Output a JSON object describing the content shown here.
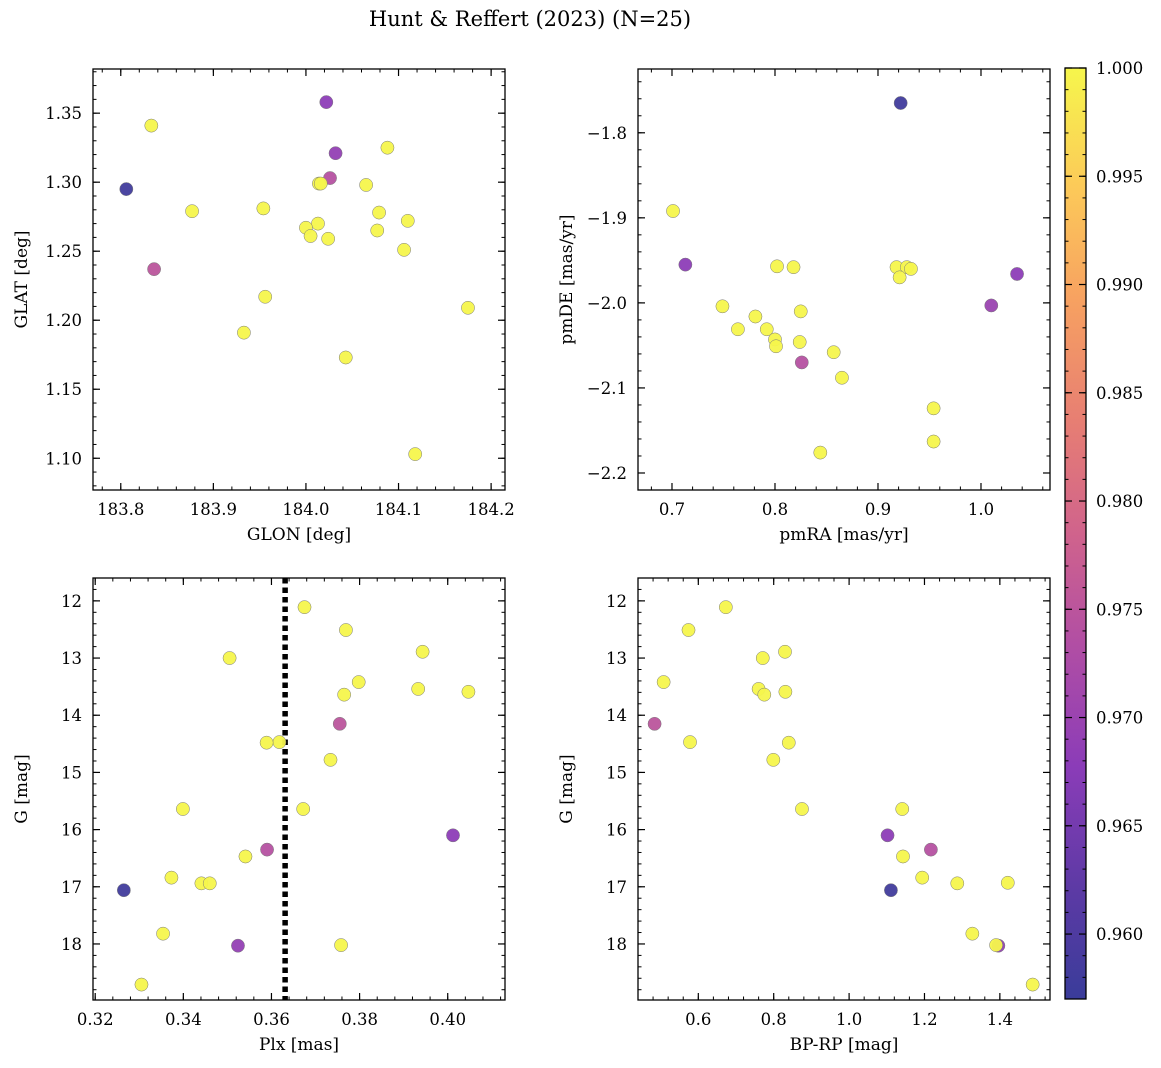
{
  "figure": {
    "title": "Hunt & Reffert (2023) (N=25)"
  },
  "colorbar": {
    "colormap": "plasma",
    "range": [
      0.957,
      1.0
    ],
    "ticks": [
      0.96,
      0.965,
      0.97,
      0.975,
      0.98,
      0.985,
      0.99,
      0.995,
      1.0
    ],
    "tick_labels": [
      "0.960",
      "0.965",
      "0.970",
      "0.975",
      "0.980",
      "0.985",
      "0.990",
      "0.995",
      "1.000"
    ]
  },
  "chart_data": [
    {
      "type": "scatter",
      "panel": "top-left",
      "xlabel": "GLON [deg]",
      "ylabel": "GLAT [deg]",
      "xlim": [
        183.77,
        184.215
      ],
      "ylim": [
        1.077,
        1.382
      ],
      "y_inverted": false,
      "xticks": [
        183.8,
        183.9,
        184.0,
        184.1,
        184.2
      ],
      "xtick_labels": [
        "183.8",
        "183.9",
        "184.0",
        "184.1",
        "184.2"
      ],
      "yticks": [
        1.1,
        1.15,
        1.2,
        1.25,
        1.3,
        1.35
      ],
      "ytick_labels": [
        "1.10",
        "1.15",
        "1.20",
        "1.25",
        "1.30",
        "1.35"
      ],
      "points": [
        {
          "x": 184.022,
          "y": 1.358,
          "c": 0.968
        },
        {
          "x": 183.833,
          "y": 1.341,
          "c": 1.0
        },
        {
          "x": 184.088,
          "y": 1.325,
          "c": 1.0
        },
        {
          "x": 184.032,
          "y": 1.321,
          "c": 0.969
        },
        {
          "x": 184.026,
          "y": 1.303,
          "c": 0.974
        },
        {
          "x": 184.014,
          "y": 1.299,
          "c": 1.0
        },
        {
          "x": 184.016,
          "y": 1.299,
          "c": 1.0
        },
        {
          "x": 184.065,
          "y": 1.298,
          "c": 1.0
        },
        {
          "x": 183.806,
          "y": 1.295,
          "c": 0.958
        },
        {
          "x": 183.954,
          "y": 1.281,
          "c": 1.0
        },
        {
          "x": 183.877,
          "y": 1.279,
          "c": 1.0
        },
        {
          "x": 184.079,
          "y": 1.278,
          "c": 1.0
        },
        {
          "x": 184.11,
          "y": 1.272,
          "c": 1.0
        },
        {
          "x": 184.013,
          "y": 1.27,
          "c": 1.0
        },
        {
          "x": 184.0,
          "y": 1.267,
          "c": 1.0
        },
        {
          "x": 184.077,
          "y": 1.265,
          "c": 1.0
        },
        {
          "x": 184.005,
          "y": 1.261,
          "c": 1.0
        },
        {
          "x": 184.024,
          "y": 1.259,
          "c": 1.0
        },
        {
          "x": 184.106,
          "y": 1.251,
          "c": 1.0
        },
        {
          "x": 183.836,
          "y": 1.237,
          "c": 0.975
        },
        {
          "x": 183.956,
          "y": 1.217,
          "c": 1.0
        },
        {
          "x": 184.175,
          "y": 1.209,
          "c": 1.0
        },
        {
          "x": 183.933,
          "y": 1.191,
          "c": 1.0
        },
        {
          "x": 184.043,
          "y": 1.173,
          "c": 1.0
        },
        {
          "x": 184.118,
          "y": 1.103,
          "c": 1.0
        }
      ]
    },
    {
      "type": "scatter",
      "panel": "top-right",
      "xlabel": "pmRA [mas/yr]",
      "ylabel": "pmDE [mas/yr]",
      "xlim": [
        0.667,
        1.067
      ],
      "ylim": [
        -2.22,
        -1.725
      ],
      "y_inverted": false,
      "xticks": [
        0.7,
        0.8,
        0.9,
        1.0
      ],
      "xtick_labels": [
        "0.7",
        "0.8",
        "0.9",
        "1.0"
      ],
      "yticks": [
        -2.2,
        -2.1,
        -2.0,
        -1.9,
        -1.8
      ],
      "ytick_labels": [
        "−2.2",
        "−2.1",
        "−2.0",
        "−1.9",
        "−1.8"
      ],
      "points": [
        {
          "x": 0.922,
          "y": -1.765,
          "c": 0.958
        },
        {
          "x": 0.701,
          "y": -1.892,
          "c": 1.0
        },
        {
          "x": 0.713,
          "y": -1.955,
          "c": 0.968
        },
        {
          "x": 0.802,
          "y": -1.957,
          "c": 1.0
        },
        {
          "x": 0.818,
          "y": -1.958,
          "c": 1.0
        },
        {
          "x": 0.918,
          "y": -1.958,
          "c": 1.0
        },
        {
          "x": 0.928,
          "y": -1.958,
          "c": 1.0
        },
        {
          "x": 0.932,
          "y": -1.96,
          "c": 1.0
        },
        {
          "x": 1.035,
          "y": -1.966,
          "c": 0.968
        },
        {
          "x": 0.921,
          "y": -1.97,
          "c": 1.0
        },
        {
          "x": 0.749,
          "y": -2.004,
          "c": 1.0
        },
        {
          "x": 1.01,
          "y": -2.003,
          "c": 0.97
        },
        {
          "x": 0.825,
          "y": -2.01,
          "c": 1.0
        },
        {
          "x": 0.781,
          "y": -2.016,
          "c": 1.0
        },
        {
          "x": 0.764,
          "y": -2.031,
          "c": 1.0
        },
        {
          "x": 0.792,
          "y": -2.031,
          "c": 1.0
        },
        {
          "x": 0.8,
          "y": -2.043,
          "c": 1.0
        },
        {
          "x": 0.824,
          "y": -2.046,
          "c": 1.0
        },
        {
          "x": 0.801,
          "y": -2.051,
          "c": 1.0
        },
        {
          "x": 0.857,
          "y": -2.058,
          "c": 1.0
        },
        {
          "x": 0.826,
          "y": -2.07,
          "c": 0.974
        },
        {
          "x": 0.865,
          "y": -2.088,
          "c": 1.0
        },
        {
          "x": 0.954,
          "y": -2.124,
          "c": 1.0
        },
        {
          "x": 0.954,
          "y": -2.163,
          "c": 1.0
        },
        {
          "x": 0.844,
          "y": -2.176,
          "c": 1.0
        }
      ]
    },
    {
      "type": "scatter",
      "panel": "bottom-left",
      "xlabel": "Plx [mas]",
      "ylabel": "G [mag]",
      "xlim": [
        0.3195,
        0.413
      ],
      "ylim": [
        11.6,
        18.98
      ],
      "y_inverted": true,
      "xticks": [
        0.32,
        0.34,
        0.36,
        0.38,
        0.4
      ],
      "xtick_labels": [
        "0.32",
        "0.34",
        "0.36",
        "0.38",
        "0.40"
      ],
      "yticks": [
        12,
        13,
        14,
        15,
        16,
        17,
        18
      ],
      "ytick_labels": [
        "12",
        "13",
        "14",
        "15",
        "16",
        "17",
        "18"
      ],
      "vline": {
        "x": 0.3631,
        "style": "dotted",
        "color": "#000000"
      },
      "points": [
        {
          "x": 0.3675,
          "y": 12.11,
          "c": 1.0
        },
        {
          "x": 0.3769,
          "y": 12.51,
          "c": 1.0
        },
        {
          "x": 0.3943,
          "y": 12.89,
          "c": 1.0
        },
        {
          "x": 0.3505,
          "y": 13.0,
          "c": 1.0
        },
        {
          "x": 0.3798,
          "y": 13.42,
          "c": 1.0
        },
        {
          "x": 0.3933,
          "y": 13.54,
          "c": 1.0
        },
        {
          "x": 0.4047,
          "y": 13.59,
          "c": 1.0
        },
        {
          "x": 0.3765,
          "y": 13.64,
          "c": 1.0
        },
        {
          "x": 0.3755,
          "y": 14.15,
          "c": 0.975
        },
        {
          "x": 0.3618,
          "y": 14.47,
          "c": 1.0
        },
        {
          "x": 0.3589,
          "y": 14.48,
          "c": 1.0
        },
        {
          "x": 0.3734,
          "y": 14.78,
          "c": 1.0
        },
        {
          "x": 0.3399,
          "y": 15.64,
          "c": 1.0
        },
        {
          "x": 0.3672,
          "y": 15.64,
          "c": 1.0
        },
        {
          "x": 0.4012,
          "y": 16.1,
          "c": 0.968
        },
        {
          "x": 0.359,
          "y": 16.35,
          "c": 0.974
        },
        {
          "x": 0.3541,
          "y": 16.47,
          "c": 1.0
        },
        {
          "x": 0.3373,
          "y": 16.84,
          "c": 1.0
        },
        {
          "x": 0.3441,
          "y": 16.94,
          "c": 1.0
        },
        {
          "x": 0.346,
          "y": 16.94,
          "c": 1.0
        },
        {
          "x": 0.3265,
          "y": 17.06,
          "c": 0.958
        },
        {
          "x": 0.3354,
          "y": 17.82,
          "c": 1.0
        },
        {
          "x": 0.3524,
          "y": 18.03,
          "c": 0.969
        },
        {
          "x": 0.3758,
          "y": 18.02,
          "c": 1.0
        },
        {
          "x": 0.3305,
          "y": 18.71,
          "c": 1.0
        }
      ]
    },
    {
      "type": "scatter",
      "panel": "bottom-right",
      "xlabel": "BP-RP [mag]",
      "ylabel": "G [mag]",
      "xlim": [
        0.44,
        1.533
      ],
      "ylim": [
        11.6,
        18.98
      ],
      "y_inverted": true,
      "xticks": [
        0.6,
        0.8,
        1.0,
        1.2,
        1.4
      ],
      "xtick_labels": [
        "0.6",
        "0.8",
        "1.0",
        "1.2",
        "1.4"
      ],
      "yticks": [
        12,
        13,
        14,
        15,
        16,
        17,
        18
      ],
      "ytick_labels": [
        "12",
        "13",
        "14",
        "15",
        "16",
        "17",
        "18"
      ],
      "points": [
        {
          "x": 0.673,
          "y": 12.11,
          "c": 1.0
        },
        {
          "x": 0.574,
          "y": 12.51,
          "c": 1.0
        },
        {
          "x": 0.83,
          "y": 12.89,
          "c": 1.0
        },
        {
          "x": 0.771,
          "y": 13.0,
          "c": 1.0
        },
        {
          "x": 0.508,
          "y": 13.42,
          "c": 1.0
        },
        {
          "x": 0.76,
          "y": 13.54,
          "c": 1.0
        },
        {
          "x": 0.831,
          "y": 13.59,
          "c": 1.0
        },
        {
          "x": 0.775,
          "y": 13.64,
          "c": 1.0
        },
        {
          "x": 0.484,
          "y": 14.15,
          "c": 0.975
        },
        {
          "x": 0.578,
          "y": 14.47,
          "c": 1.0
        },
        {
          "x": 0.84,
          "y": 14.48,
          "c": 1.0
        },
        {
          "x": 0.799,
          "y": 14.78,
          "c": 1.0
        },
        {
          "x": 0.875,
          "y": 15.64,
          "c": 1.0
        },
        {
          "x": 1.141,
          "y": 15.64,
          "c": 1.0
        },
        {
          "x": 1.102,
          "y": 16.1,
          "c": 0.968
        },
        {
          "x": 1.217,
          "y": 16.35,
          "c": 0.974
        },
        {
          "x": 1.143,
          "y": 16.47,
          "c": 1.0
        },
        {
          "x": 1.194,
          "y": 16.84,
          "c": 1.0
        },
        {
          "x": 1.287,
          "y": 16.94,
          "c": 1.0
        },
        {
          "x": 1.421,
          "y": 16.93,
          "c": 1.0
        },
        {
          "x": 1.111,
          "y": 17.06,
          "c": 0.958
        },
        {
          "x": 1.327,
          "y": 17.82,
          "c": 1.0
        },
        {
          "x": 1.396,
          "y": 18.03,
          "c": 0.969
        },
        {
          "x": 1.39,
          "y": 18.02,
          "c": 1.0
        },
        {
          "x": 1.487,
          "y": 18.71,
          "c": 1.0
        }
      ]
    }
  ]
}
